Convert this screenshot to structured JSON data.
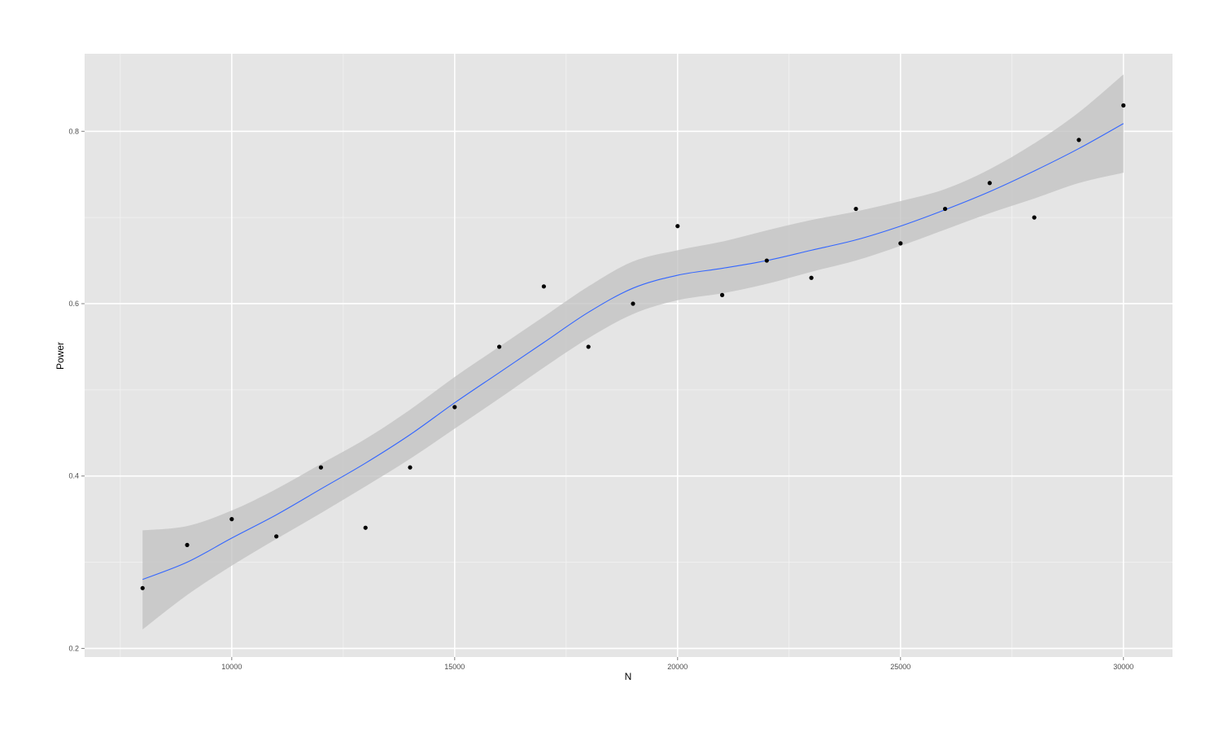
{
  "chart_data": {
    "type": "scatter",
    "title": "",
    "xlabel": "N",
    "ylabel": "Power",
    "xlim": [
      6700,
      31100
    ],
    "ylim": [
      0.19,
      0.89
    ],
    "x_ticks": [
      10000,
      15000,
      20000,
      25000,
      30000
    ],
    "x_tick_labels": [
      "10000",
      "15000",
      "20000",
      "25000",
      "30000"
    ],
    "y_ticks": [
      0.2,
      0.4,
      0.6,
      0.8
    ],
    "y_tick_labels": [
      "0.2",
      "0.4",
      "0.6",
      "0.8"
    ],
    "grid": true,
    "legend": "none",
    "series": [
      {
        "type": "scatter",
        "x": [
          8000,
          9000,
          10000,
          11000,
          12000,
          13000,
          14000,
          15000,
          16000,
          17000,
          18000,
          19000,
          20000,
          21000,
          22000,
          23000,
          24000,
          25000,
          26000,
          27000,
          28000,
          29000,
          30000
        ],
        "y": [
          0.27,
          0.32,
          0.35,
          0.33,
          0.41,
          0.34,
          0.41,
          0.48,
          0.55,
          0.62,
          0.55,
          0.6,
          0.69,
          0.61,
          0.65,
          0.63,
          0.71,
          0.67,
          0.71,
          0.74,
          0.7,
          0.79,
          0.83
        ]
      },
      {
        "type": "smooth",
        "x": [
          8000,
          9000,
          10000,
          11000,
          12000,
          13000,
          14000,
          15000,
          16000,
          17000,
          18000,
          19000,
          20000,
          21000,
          22000,
          23000,
          24000,
          25000,
          26000,
          27000,
          28000,
          29000,
          30000
        ],
        "y": [
          0.28,
          0.3,
          0.328,
          0.355,
          0.385,
          0.415,
          0.448,
          0.485,
          0.52,
          0.555,
          0.59,
          0.618,
          0.633,
          0.641,
          0.65,
          0.662,
          0.674,
          0.69,
          0.709,
          0.73,
          0.754,
          0.78,
          0.809
        ],
        "lower": [
          0.222,
          0.262,
          0.296,
          0.327,
          0.357,
          0.388,
          0.42,
          0.455,
          0.49,
          0.526,
          0.56,
          0.588,
          0.604,
          0.612,
          0.623,
          0.637,
          0.65,
          0.667,
          0.686,
          0.705,
          0.722,
          0.74,
          0.752
        ],
        "upper": [
          0.337,
          0.342,
          0.36,
          0.385,
          0.414,
          0.443,
          0.477,
          0.515,
          0.55,
          0.585,
          0.62,
          0.649,
          0.662,
          0.672,
          0.685,
          0.697,
          0.707,
          0.719,
          0.733,
          0.756,
          0.786,
          0.822,
          0.866
        ]
      }
    ],
    "colors": {
      "panel_background": "#e5e5e5",
      "grid_major": "#ffffff",
      "grid_minor": "#f2f2f2",
      "point": "#000000",
      "smooth_line": "#3366ff",
      "confidence_band": "#c0c0c0"
    }
  }
}
